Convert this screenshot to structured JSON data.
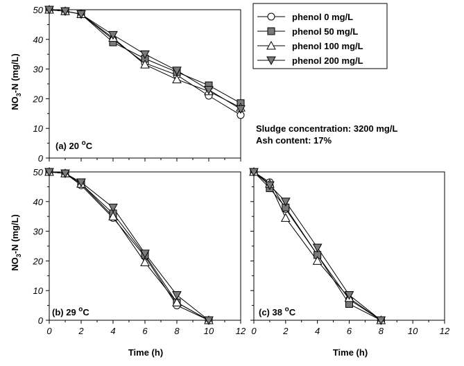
{
  "figure": {
    "ylabel_main": "NO",
    "ylabel_sub": "3",
    "ylabel_rest": "-N (mg/L)",
    "xlabel": "Time (h)",
    "note_line1": "Sludge concentration: 3200 mg/L",
    "note_line2": "Ash content: 17%",
    "legend": [
      {
        "label": "phenol 0 mg/L",
        "marker": "circle-open"
      },
      {
        "label": "phenol 50 mg/L",
        "marker": "square-filled"
      },
      {
        "label": "phenol 100 mg/L",
        "marker": "triangle-up-open"
      },
      {
        "label": "phenol 200 mg/L",
        "marker": "triangle-down-filled"
      }
    ],
    "marker_fill": "#7a7a7a"
  },
  "chart_data": [
    {
      "type": "line",
      "panel_label": "(a) 20 °C",
      "panel_text": "(a) 20 ",
      "panel_sup": "o",
      "panel_unit": "C",
      "xlim": [
        0,
        12
      ],
      "ylim": [
        0,
        50
      ],
      "xticks": [
        "0",
        "2",
        "4",
        "6",
        "8",
        "10",
        "12"
      ],
      "yticks": [
        "0",
        "10",
        "20",
        "30",
        "40",
        "50"
      ],
      "series": [
        {
          "name": "phenol 0 mg/L",
          "x": [
            0,
            1,
            2,
            4,
            6,
            8,
            10,
            12
          ],
          "y": [
            50,
            49.5,
            48.5,
            40,
            32,
            28,
            21,
            14.5
          ]
        },
        {
          "name": "phenol 50 mg/L",
          "x": [
            0,
            1,
            2,
            4,
            6,
            8,
            10,
            12
          ],
          "y": [
            50,
            49.5,
            48.5,
            39,
            33.5,
            29,
            24.5,
            18.5
          ]
        },
        {
          "name": "phenol 100 mg/L",
          "x": [
            0,
            1,
            2,
            4,
            6,
            8,
            10,
            12
          ],
          "y": [
            50,
            49.5,
            48.5,
            40.5,
            31.5,
            26.5,
            22.5,
            17
          ]
        },
        {
          "name": "phenol 200 mg/L",
          "x": [
            0,
            1,
            2,
            4,
            6,
            8,
            10,
            12
          ],
          "y": [
            50,
            49.5,
            48.5,
            41.5,
            35,
            29.5,
            23,
            16.5
          ]
        }
      ]
    },
    {
      "type": "line",
      "panel_label": "(b) 29 °C",
      "panel_text": "(b) 29 ",
      "panel_sup": "o",
      "panel_unit": "C",
      "xlim": [
        0,
        12
      ],
      "ylim": [
        0,
        50
      ],
      "xticks": [
        "0",
        "2",
        "4",
        "6",
        "8",
        "10",
        "12"
      ],
      "yticks": [
        "0",
        "10",
        "20",
        "30",
        "40",
        "50"
      ],
      "series": [
        {
          "name": "phenol 0 mg/L",
          "x": [
            0,
            1,
            2,
            4,
            6,
            8,
            10
          ],
          "y": [
            50,
            49.5,
            45.5,
            34.5,
            21.5,
            5,
            0
          ]
        },
        {
          "name": "phenol 50 mg/L",
          "x": [
            0,
            1,
            2,
            4,
            6,
            8,
            10
          ],
          "y": [
            50,
            49.5,
            46,
            36,
            22,
            6,
            0
          ]
        },
        {
          "name": "phenol 100 mg/L",
          "x": [
            0,
            1,
            2,
            4,
            6,
            8,
            10
          ],
          "y": [
            50,
            49.5,
            46,
            35,
            19.5,
            6,
            0
          ]
        },
        {
          "name": "phenol 200 mg/L",
          "x": [
            0,
            1,
            2,
            4,
            6,
            8,
            10
          ],
          "y": [
            50,
            49.5,
            46.5,
            38,
            22.5,
            8.5,
            0
          ]
        }
      ]
    },
    {
      "type": "line",
      "panel_label": "(c) 38 °C",
      "panel_text": "(c) 38 ",
      "panel_sup": "o",
      "panel_unit": "C",
      "xlim": [
        0,
        12
      ],
      "ylim": [
        0,
        50
      ],
      "xticks": [
        "0",
        "2",
        "4",
        "6",
        "8",
        "10",
        "12"
      ],
      "yticks": [],
      "series": [
        {
          "name": "phenol 0 mg/L",
          "x": [
            0,
            1,
            2,
            4,
            6,
            8
          ],
          "y": [
            50,
            46.5,
            37.5,
            22,
            7,
            0
          ]
        },
        {
          "name": "phenol 50 mg/L",
          "x": [
            0,
            1,
            2,
            4,
            6,
            8
          ],
          "y": [
            50,
            44.5,
            38,
            22,
            5.5,
            0
          ]
        },
        {
          "name": "phenol 100 mg/L",
          "x": [
            0,
            1,
            2,
            4,
            6,
            8
          ],
          "y": [
            50,
            46,
            34.5,
            20,
            7.5,
            0
          ]
        },
        {
          "name": "phenol 200 mg/L",
          "x": [
            0,
            1,
            2,
            4,
            6,
            8
          ],
          "y": [
            50,
            45.5,
            40,
            24.5,
            8.5,
            0
          ]
        }
      ]
    }
  ]
}
